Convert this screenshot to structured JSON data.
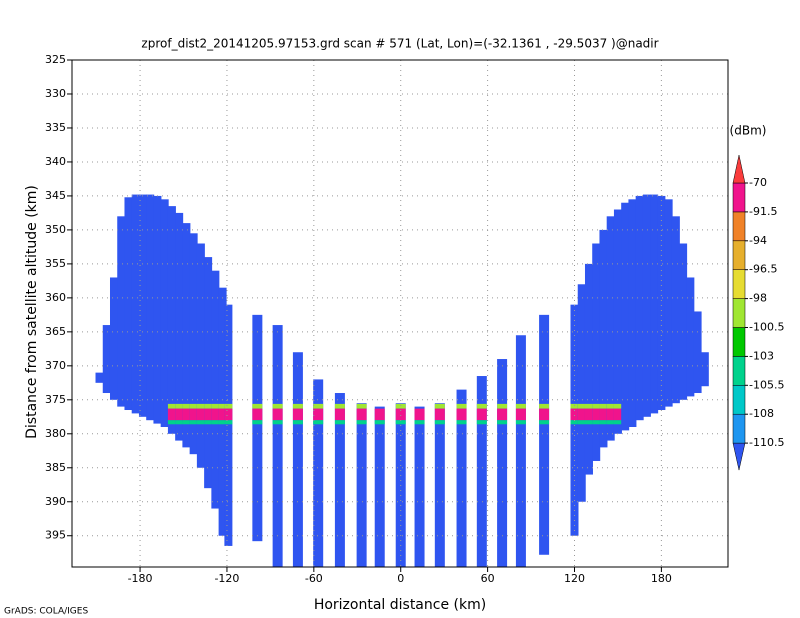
{
  "chart_data": {
    "type": "curtain",
    "title": "zprof_dist2_20141205.97153.grd  scan # 571  (Lat, Lon)=(-32.1361 , -29.5037 )@nadir",
    "x_label": "Horizontal distance (km)",
    "y_label": "Distance from satellite altitude (km)",
    "footer": "GrADS: COLA/IGES",
    "xlim": [
      -227,
      226
    ],
    "ylim": [
      399.6,
      325
    ],
    "xticks": [
      -180,
      -120,
      -60,
      0,
      60,
      120,
      180
    ],
    "yticks": [
      325,
      330,
      335,
      340,
      345,
      350,
      355,
      360,
      365,
      370,
      375,
      380,
      385,
      390,
      395
    ],
    "grid": true,
    "colorbar": {
      "label": "(dBm)",
      "levels": [
        -110.5,
        -108,
        -105.5,
        -103,
        -100.5,
        -98,
        -96.5,
        -94,
        -91.5,
        -70
      ],
      "colors": [
        "#2f55f0",
        "#1e96f0",
        "#00c8c8",
        "#00d28c",
        "#00c800",
        "#a0e632",
        "#e6dc32",
        "#e6af2d",
        "#f08228",
        "#f0148c",
        "#fa3c3c"
      ]
    },
    "columns": [
      {
        "x": -208,
        "top": 371,
        "bottom": 372.5,
        "value": -112
      },
      {
        "x": -203,
        "top": 364,
        "bottom": 374,
        "value": -112
      },
      {
        "x": -198,
        "top": 357,
        "bottom": 375,
        "value": -112
      },
      {
        "x": -193,
        "top": 348,
        "bottom": 376,
        "value": -112
      },
      {
        "x": -188,
        "top": 345.2,
        "bottom": 376.5,
        "value": -112
      },
      {
        "x": -183,
        "top": 344.8,
        "bottom": 377,
        "value": -112
      },
      {
        "x": -178,
        "top": 344.8,
        "bottom": 377.5,
        "value": -112
      },
      {
        "x": -173,
        "top": 344.8,
        "bottom": 378,
        "value": -112
      },
      {
        "x": -168,
        "top": 345,
        "bottom": 378.5,
        "value": -112
      },
      {
        "x": -163,
        "top": 345.5,
        "bottom": 379,
        "value": -112
      },
      {
        "x": -158,
        "top": 346.5,
        "bottom": 380,
        "value": -112
      },
      {
        "x": -153,
        "top": 347.5,
        "bottom": 381,
        "value": -112
      },
      {
        "x": -148,
        "top": 349,
        "bottom": 382,
        "value": -112
      },
      {
        "x": -143,
        "top": 350.5,
        "bottom": 383,
        "value": -112
      },
      {
        "x": -138,
        "top": 352,
        "bottom": 385,
        "value": -112
      },
      {
        "x": -133,
        "top": 354,
        "bottom": 388,
        "value": -112
      },
      {
        "x": -128,
        "top": 356,
        "bottom": 391,
        "value": -112
      },
      {
        "x": -123,
        "top": 358.5,
        "bottom": 395,
        "value": -112
      },
      {
        "x": -119,
        "top": 361,
        "bottom": 396.5,
        "value": -112
      },
      {
        "x": -99,
        "top": 362.5,
        "bottom": 395.8,
        "value": -112
      },
      {
        "x": -85,
        "top": 364,
        "bottom": 399.6,
        "value": -112
      },
      {
        "x": -71,
        "top": 368,
        "bottom": 399.6,
        "value": -112
      },
      {
        "x": -57,
        "top": 372,
        "bottom": 399.6,
        "value": -112
      },
      {
        "x": -42,
        "top": 374,
        "bottom": 399.6,
        "value": -112
      },
      {
        "x": -27,
        "top": 375.5,
        "bottom": 399.6,
        "value": -112
      },
      {
        "x": -14.5,
        "top": 376,
        "bottom": 399.6,
        "value": -112
      },
      {
        "x": 0,
        "top": 375.5,
        "bottom": 399.6,
        "value": -112
      },
      {
        "x": 13,
        "top": 376,
        "bottom": 399.6,
        "value": -112
      },
      {
        "x": 27,
        "top": 375.5,
        "bottom": 399.6,
        "value": -112
      },
      {
        "x": 42,
        "top": 373.5,
        "bottom": 399.6,
        "value": -112
      },
      {
        "x": 56,
        "top": 371.5,
        "bottom": 399.6,
        "value": -112
      },
      {
        "x": 70,
        "top": 369,
        "bottom": 399.6,
        "value": -112
      },
      {
        "x": 83,
        "top": 365.5,
        "bottom": 399.6,
        "value": -112
      },
      {
        "x": 99,
        "top": 362.5,
        "bottom": 397.8,
        "value": -112
      },
      {
        "x": 120,
        "top": 361,
        "bottom": 395,
        "value": -112
      },
      {
        "x": 125,
        "top": 358,
        "bottom": 390,
        "value": -112
      },
      {
        "x": 130,
        "top": 355,
        "bottom": 386,
        "value": -112
      },
      {
        "x": 135,
        "top": 352,
        "bottom": 384,
        "value": -112
      },
      {
        "x": 140,
        "top": 350,
        "bottom": 382,
        "value": -112
      },
      {
        "x": 145,
        "top": 348,
        "bottom": 381,
        "value": -112
      },
      {
        "x": 150,
        "top": 347,
        "bottom": 380,
        "value": -112
      },
      {
        "x": 155,
        "top": 346,
        "bottom": 379.5,
        "value": -112
      },
      {
        "x": 160,
        "top": 345.5,
        "bottom": 379,
        "value": -112
      },
      {
        "x": 165,
        "top": 345,
        "bottom": 378,
        "value": -112
      },
      {
        "x": 170,
        "top": 344.8,
        "bottom": 377.5,
        "value": -112
      },
      {
        "x": 175,
        "top": 344.8,
        "bottom": 377,
        "value": -112
      },
      {
        "x": 180,
        "top": 345,
        "bottom": 376.5,
        "value": -112
      },
      {
        "x": 185,
        "top": 345.5,
        "bottom": 376,
        "value": -112
      },
      {
        "x": 190,
        "top": 348,
        "bottom": 375.5,
        "value": -112
      },
      {
        "x": 195,
        "top": 352,
        "bottom": 375,
        "value": -112
      },
      {
        "x": 200,
        "top": 357,
        "bottom": 374.5,
        "value": -112
      },
      {
        "x": 205,
        "top": 362,
        "bottom": 374,
        "value": -112
      },
      {
        "x": 210,
        "top": 368,
        "bottom": 373,
        "value": -112
      }
    ],
    "layers": [
      {
        "x": [
          -160,
          150
        ],
        "top": 375.6,
        "bottom": 376.3,
        "value": -99
      },
      {
        "x": [
          -160,
          150
        ],
        "top": 376.3,
        "bottom": 378.0,
        "value": -90
      },
      {
        "x": [
          -160,
          150
        ],
        "top": 378.0,
        "bottom": 378.6,
        "value": -104
      }
    ]
  }
}
